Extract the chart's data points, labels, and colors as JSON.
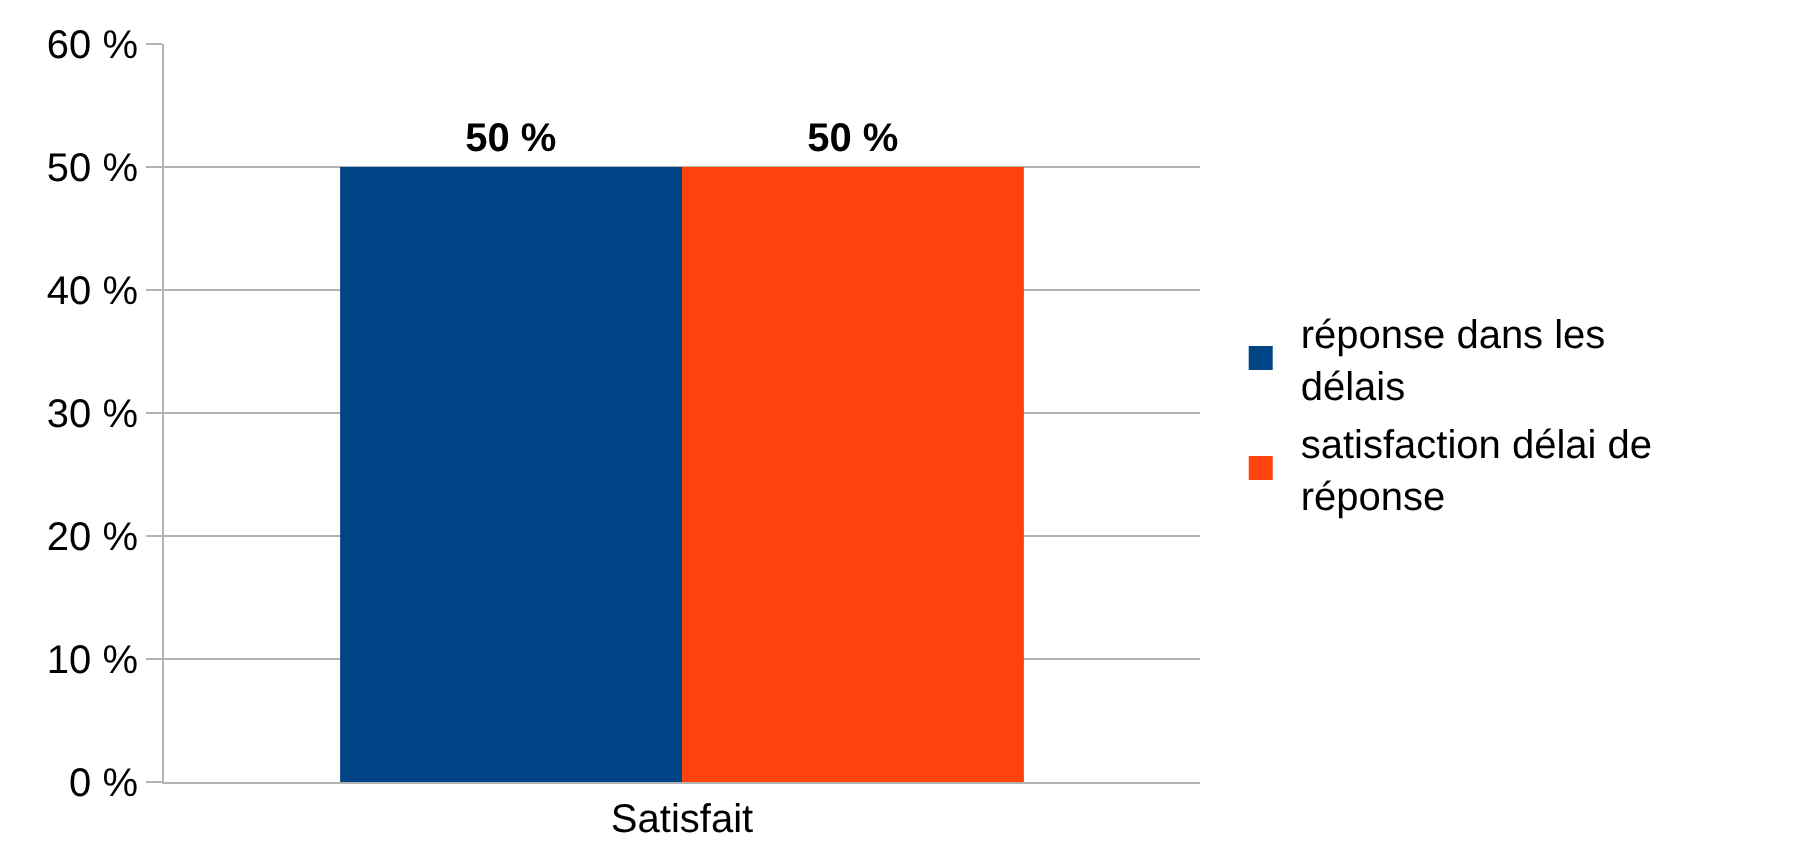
{
  "chart_data": {
    "type": "bar",
    "categories": [
      "Satisfait"
    ],
    "series": [
      {
        "name": "réponse dans les délais",
        "color": "#004586",
        "values": [
          50
        ],
        "value_labels": [
          "50 %"
        ]
      },
      {
        "name": "satisfaction délai de réponse",
        "color": "#ff420e",
        "values": [
          50
        ],
        "value_labels": [
          "50 %"
        ]
      }
    ],
    "ylim": [
      0,
      60
    ],
    "yticks": [
      {
        "value": 0,
        "label": "0 %"
      },
      {
        "value": 10,
        "label": "10 %"
      },
      {
        "value": 20,
        "label": "20 %"
      },
      {
        "value": 30,
        "label": "30 %"
      },
      {
        "value": 40,
        "label": "40 %"
      },
      {
        "value": 50,
        "label": "50 %"
      },
      {
        "value": 60,
        "label": "60 %"
      }
    ],
    "grid": "y",
    "legend": "right"
  }
}
